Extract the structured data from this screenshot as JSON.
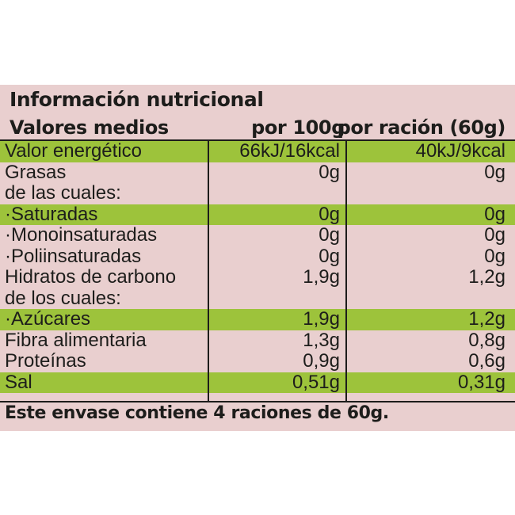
{
  "title": "Información nutricional",
  "header": {
    "name": "Valores medios",
    "col1": "por 100g",
    "col2": "por ración (60g)"
  },
  "rows": [
    {
      "name": "Valor energético",
      "per100": "66kJ/16kcal",
      "perServing": "40kJ/9kcal",
      "highlight": true
    },
    {
      "name": "Grasas",
      "per100": "0g",
      "perServing": "0g",
      "highlight": false
    },
    {
      "name": "de las cuales:",
      "per100": "",
      "perServing": "",
      "highlight": false
    },
    {
      "name": "·Saturadas",
      "per100": "0g",
      "perServing": "0g",
      "highlight": true
    },
    {
      "name": "·Monoinsaturadas",
      "per100": "0g",
      "perServing": "0g",
      "highlight": false
    },
    {
      "name": "·Poliinsaturadas",
      "per100": "0g",
      "perServing": "0g",
      "highlight": false
    },
    {
      "name": "Hidratos de carbono",
      "per100": "1,9g",
      "perServing": "1,2g",
      "highlight": false
    },
    {
      "name": "de los cuales:",
      "per100": "",
      "perServing": "",
      "highlight": false
    },
    {
      "name": "·Azúcares",
      "per100": "1,9g",
      "perServing": "1,2g",
      "highlight": true
    },
    {
      "name": "Fibra alimentaria",
      "per100": "1,3g",
      "perServing": "0,8g",
      "highlight": false
    },
    {
      "name": "Proteínas",
      "per100": "0,9g",
      "perServing": "0,6g",
      "highlight": false
    },
    {
      "name": "Sal",
      "per100": "0,51g",
      "perServing": "0,31g",
      "highlight": true
    }
  ],
  "footer": "Este envase contiene 4 raciones de 60g.",
  "colors": {
    "background": "#e9cfcf",
    "highlight": "#9dc33b",
    "text": "#1d1d1b"
  }
}
